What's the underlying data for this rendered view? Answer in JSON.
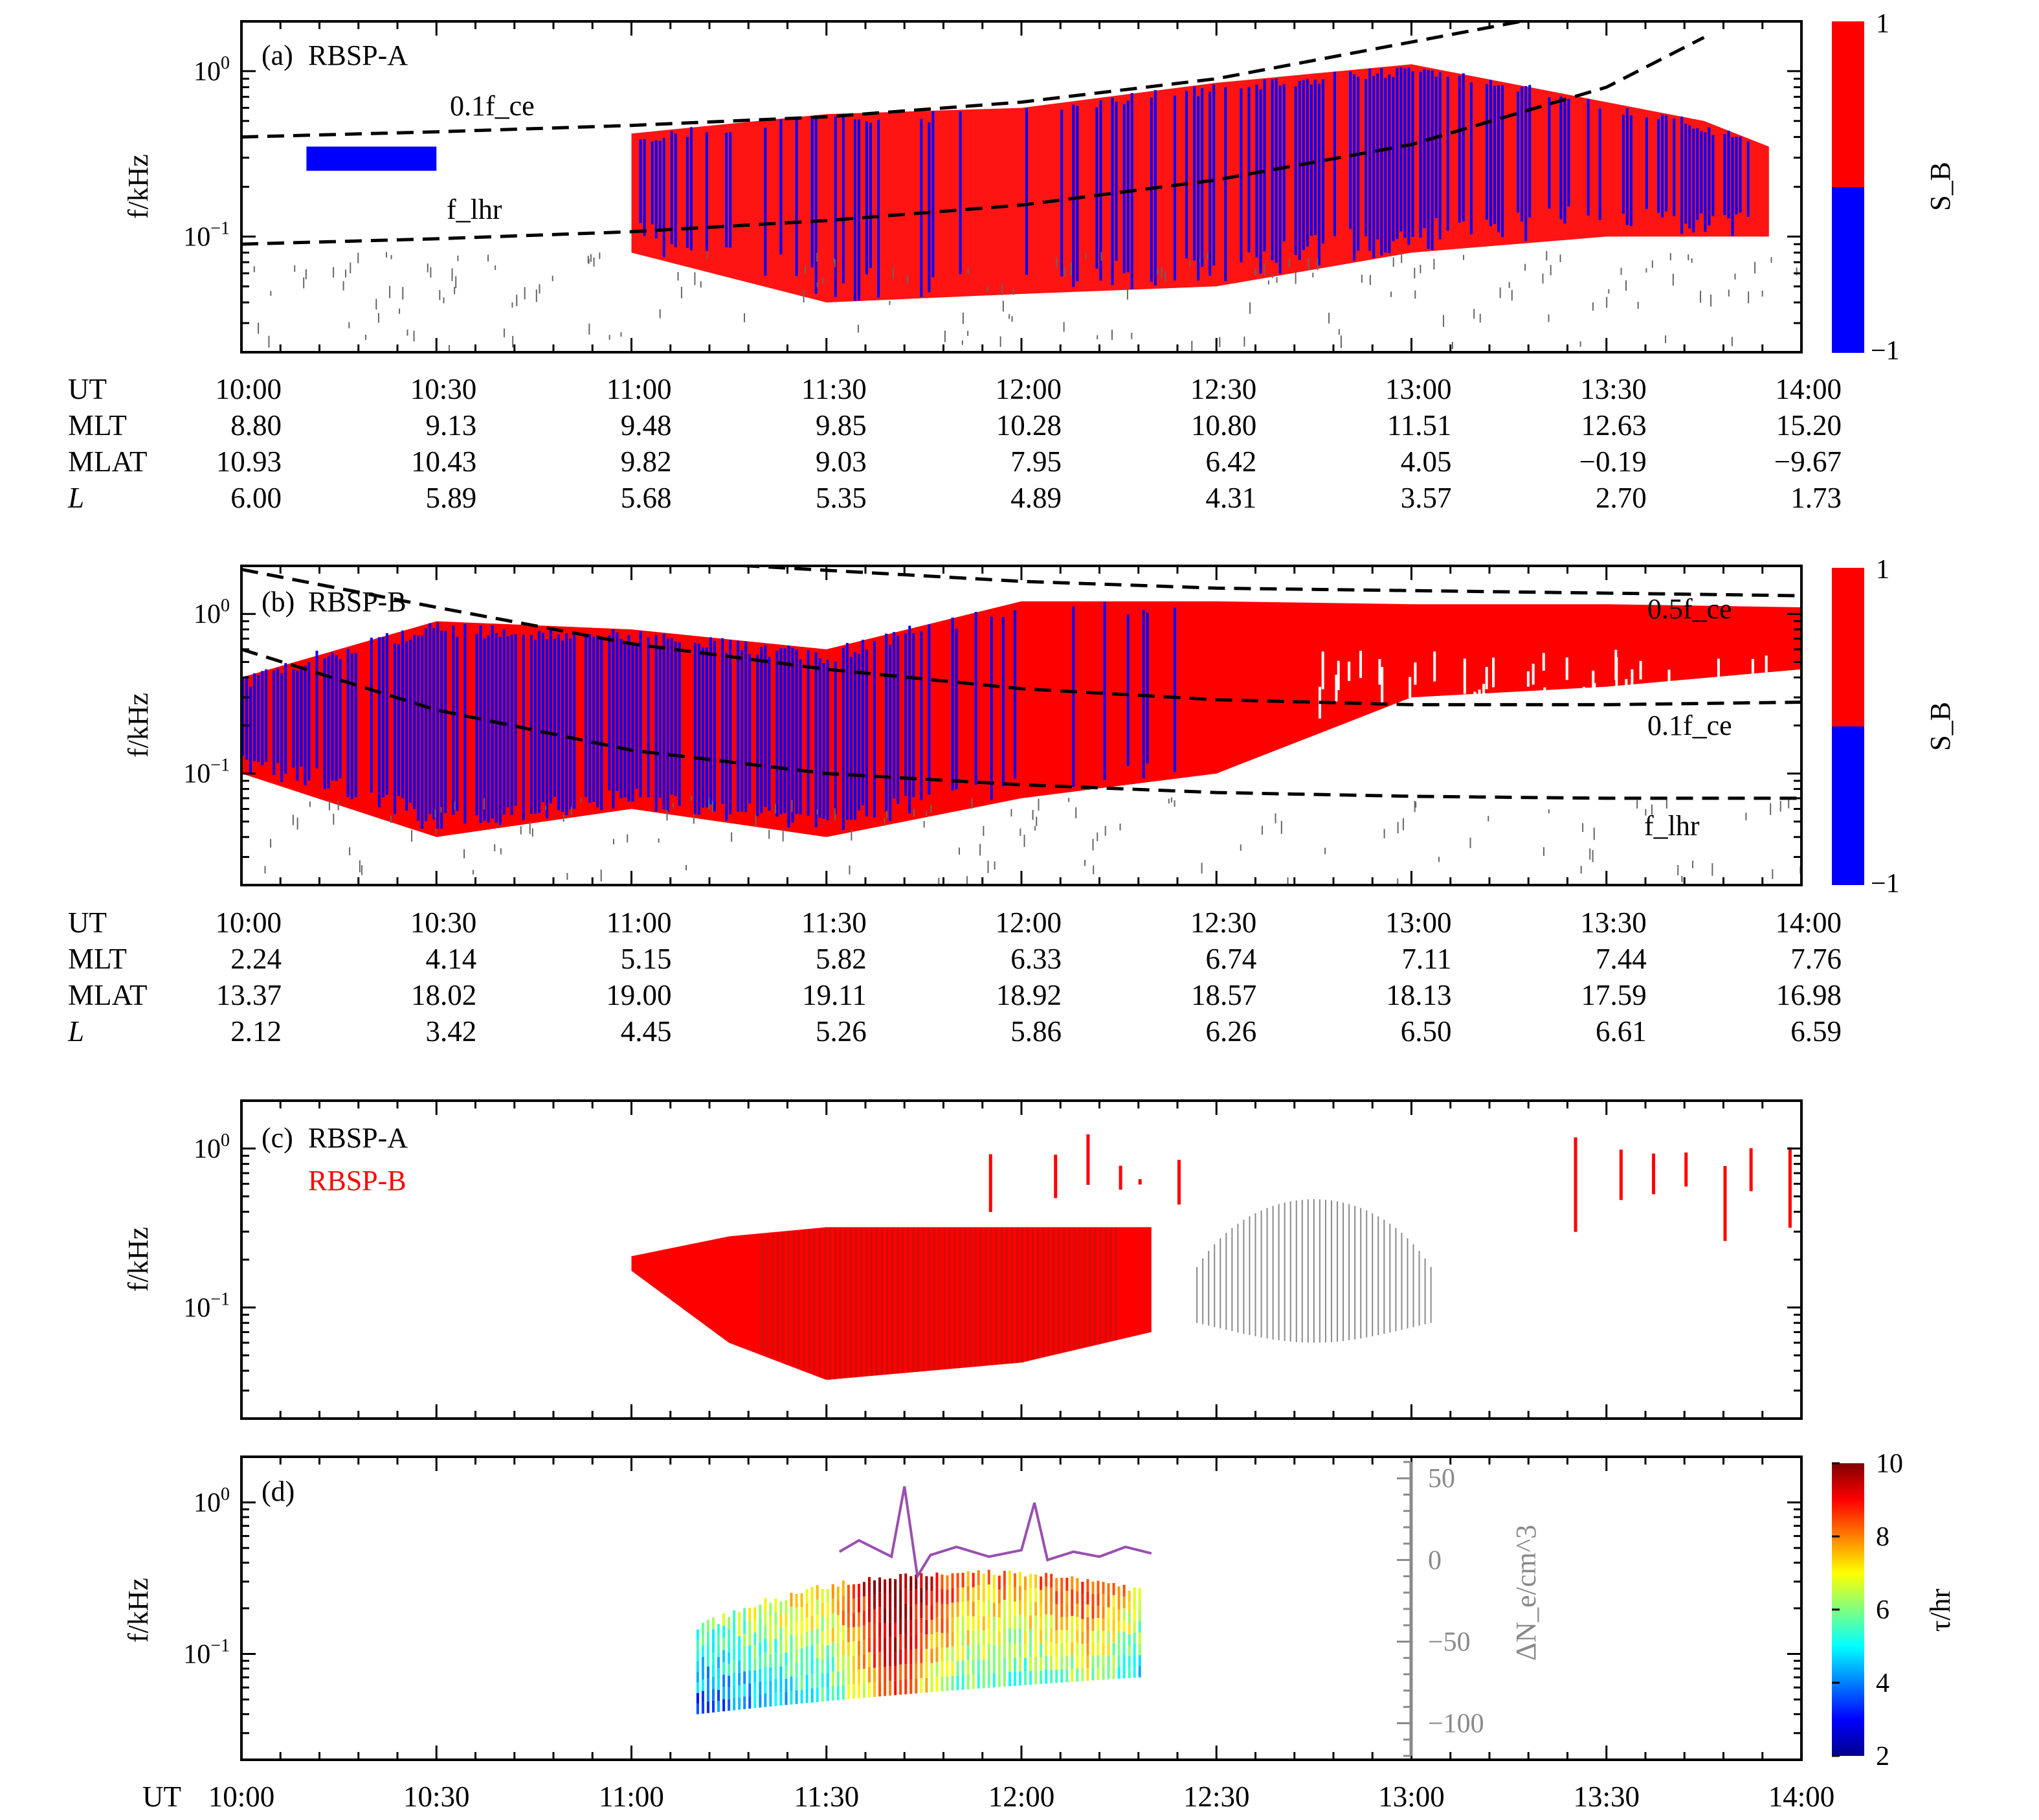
{
  "figure": {
    "colors": {
      "red": "#ff0000",
      "blue": "#0000ff",
      "darkred": "#b5160f",
      "grey": "#8a8a8a",
      "purple": "#9a4fb0"
    }
  },
  "chart_data": [
    {
      "panel": "a",
      "type": "heatmap",
      "label_prefix": "(a)",
      "label": "RBSP-A",
      "xlabel": "",
      "ylabel": "f/kHz",
      "xlim": [
        "10:00",
        "14:00"
      ],
      "ylim": [
        0.02,
        2.0
      ],
      "yscale": "log",
      "yticks": [
        "10^-1",
        "10^0"
      ],
      "colorbar": {
        "label": "S_B",
        "ticks": [
          "1",
          "−1"
        ],
        "values": [
          1,
          -1
        ],
        "colors": [
          "#ff0000",
          "#0000ff"
        ]
      },
      "curve_labels": [
        "0.1f_ce",
        "f_lhr"
      ],
      "curves": [
        {
          "name": "0.1f_ce",
          "x": [
            "10:00",
            "10:30",
            "11:00",
            "11:30",
            "12:00",
            "12:30",
            "13:00",
            "13:30",
            "13:50"
          ],
          "y": [
            0.4,
            0.43,
            0.47,
            0.53,
            0.65,
            0.9,
            1.5,
            2.5,
            3.8
          ]
        },
        {
          "name": "f_lhr",
          "x": [
            "10:00",
            "10:30",
            "11:00",
            "11:30",
            "12:00",
            "12:30",
            "13:00",
            "13:30",
            "13:45"
          ],
          "y": [
            0.09,
            0.097,
            0.107,
            0.125,
            0.155,
            0.22,
            0.36,
            0.8,
            1.6
          ]
        }
      ],
      "emission": [
        {
          "t": "10:10",
          "f_low": 0.25,
          "f_high": 0.35,
          "S": -0.9
        },
        {
          "t": "10:45",
          "f_low": 0.1,
          "f_high": 0.38,
          "S": 0.2
        },
        {
          "t": "11:00",
          "f_low": 0.08,
          "f_high": 0.42,
          "S": 0.1
        },
        {
          "t": "11:30",
          "f_low": 0.04,
          "f_high": 0.55,
          "S": 0.6
        },
        {
          "t": "12:00",
          "f_low": 0.045,
          "f_high": 0.6,
          "S": 0.4
        },
        {
          "t": "12:30",
          "f_low": 0.05,
          "f_high": 0.85,
          "S": 0.1
        },
        {
          "t": "13:00",
          "f_low": 0.08,
          "f_high": 1.1,
          "S": -0.5
        },
        {
          "t": "13:30",
          "f_low": 0.1,
          "f_high": 0.65,
          "S": 0.2
        },
        {
          "t": "13:45",
          "f_low": 0.1,
          "f_high": 0.5,
          "S": -0.8
        },
        {
          "t": "13:55",
          "f_low": 0.1,
          "f_high": 0.35,
          "S": 0.8
        }
      ],
      "table": {
        "rows": [
          "UT",
          "MLT",
          "MLAT",
          "L"
        ],
        "UT": [
          "10:00",
          "10:30",
          "11:00",
          "11:30",
          "12:00",
          "12:30",
          "13:00",
          "13:30",
          "14:00"
        ],
        "MLT": [
          "8.80",
          "9.13",
          "9.48",
          "9.85",
          "10.28",
          "10.80",
          "11.51",
          "12.63",
          "15.20"
        ],
        "MLAT": [
          "10.93",
          "10.43",
          "9.82",
          "9.03",
          "7.95",
          "6.42",
          "4.05",
          "−0.19",
          "−9.67"
        ],
        "L": [
          "6.00",
          "5.89",
          "5.68",
          "5.35",
          "4.89",
          "4.31",
          "3.57",
          "2.70",
          "1.73"
        ]
      }
    },
    {
      "panel": "b",
      "type": "heatmap",
      "label_prefix": "(b)",
      "label": "RBSP-B",
      "xlabel": "",
      "ylabel": "f/kHz",
      "xlim": [
        "10:00",
        "14:00"
      ],
      "ylim": [
        0.02,
        2.0
      ],
      "yscale": "log",
      "yticks": [
        "10^-1",
        "10^0"
      ],
      "colorbar": {
        "label": "S_B",
        "ticks": [
          "1",
          "−1"
        ],
        "values": [
          1,
          -1
        ],
        "colors": [
          "#ff0000",
          "#0000ff"
        ]
      },
      "curve_labels": [
        "0.5f_ce",
        "0.1f_ce",
        "f_lhr"
      ],
      "curves": [
        {
          "name": "0.5f_ce",
          "x": [
            "10:30",
            "11:00",
            "12:00",
            "12:30",
            "13:00",
            "13:30",
            "14:00"
          ],
          "y": [
            4.0,
            2.2,
            1.6,
            1.45,
            1.4,
            1.35,
            1.3
          ]
        },
        {
          "name": "0.1f_ce",
          "x": [
            "10:00",
            "10:30",
            "11:00",
            "11:30",
            "12:00",
            "12:30",
            "13:00",
            "13:30",
            "14:00"
          ],
          "y": [
            1.9,
            1.1,
            0.65,
            0.45,
            0.34,
            0.29,
            0.27,
            0.27,
            0.28
          ]
        },
        {
          "name": "f_lhr",
          "x": [
            "10:00",
            "10:30",
            "11:00",
            "11:30",
            "12:00",
            "12:30",
            "13:00",
            "13:30",
            "14:00"
          ],
          "y": [
            0.6,
            0.25,
            0.14,
            0.1,
            0.085,
            0.076,
            0.072,
            0.07,
            0.07
          ]
        }
      ],
      "emission": [
        {
          "t": "10:00",
          "f_low": 0.1,
          "f_high": 0.4,
          "S": -0.7
        },
        {
          "t": "10:30",
          "f_low": 0.04,
          "f_high": 0.9,
          "S": -0.8
        },
        {
          "t": "11:00",
          "f_low": 0.06,
          "f_high": 0.8,
          "S": -0.6
        },
        {
          "t": "11:30",
          "f_low": 0.04,
          "f_high": 0.6,
          "S": -0.7
        },
        {
          "t": "12:00",
          "f_low": 0.07,
          "f_high": 1.2,
          "S": 0.9
        },
        {
          "t": "12:30",
          "f_low": 0.1,
          "f_high": 1.2,
          "S": 0.9
        },
        {
          "t": "13:00",
          "f_low": 0.3,
          "f_high": 1.15,
          "S": 1.0
        },
        {
          "t": "13:30",
          "f_low": 0.35,
          "f_high": 1.15,
          "S": 1.0
        },
        {
          "t": "14:00",
          "f_low": 0.45,
          "f_high": 1.1,
          "S": 1.0
        }
      ],
      "table": {
        "rows": [
          "UT",
          "MLT",
          "MLAT",
          "L"
        ],
        "UT": [
          "10:00",
          "10:30",
          "11:00",
          "11:30",
          "12:00",
          "12:30",
          "13:00",
          "13:30",
          "14:00"
        ],
        "MLT": [
          "2.24",
          "4.14",
          "5.15",
          "5.82",
          "6.33",
          "6.74",
          "7.11",
          "7.44",
          "7.76"
        ],
        "MLAT": [
          "13.37",
          "18.02",
          "19.00",
          "19.11",
          "18.92",
          "18.57",
          "18.13",
          "17.59",
          "16.98"
        ],
        "L": [
          "2.12",
          "3.42",
          "4.45",
          "5.26",
          "5.86",
          "6.26",
          "6.50",
          "6.61",
          "6.59"
        ]
      }
    },
    {
      "panel": "c",
      "type": "heatmap",
      "label_prefix": "(c)",
      "label": "RBSP-A",
      "label2": "RBSP-B",
      "xlabel": "",
      "ylabel": "f/kHz",
      "xlim": [
        "10:00",
        "14:00"
      ],
      "ylim": [
        0.02,
        2.0
      ],
      "yscale": "log",
      "yticks": [
        "10^-1",
        "10^0"
      ],
      "emission": [
        {
          "t": "11:00",
          "f_low": 0.17,
          "f_high": 0.21,
          "series": "RBSP-B"
        },
        {
          "t": "11:15",
          "f_low": 0.06,
          "f_high": 0.28,
          "series": "RBSP-B"
        },
        {
          "t": "11:30",
          "f_low": 0.035,
          "f_high": 0.32,
          "series": "both"
        },
        {
          "t": "12:00",
          "f_low": 0.045,
          "f_high": 0.32,
          "series": "both"
        },
        {
          "t": "12:20",
          "f_low": 0.07,
          "f_high": 0.32,
          "series": "RBSP-B"
        },
        {
          "t": "12:40",
          "f_low": 0.08,
          "f_high": 0.32,
          "series": "RBSP-A"
        },
        {
          "t": "13:00",
          "f_low": 0.08,
          "f_high": 0.5,
          "series": "RBSP-A"
        },
        {
          "t": "13:25",
          "f_low": 0.2,
          "f_high": 0.8,
          "series": "RBSP-B"
        },
        {
          "t": "13:45",
          "f_low": 0.5,
          "f_high": 1.2,
          "series": "RBSP-B"
        }
      ]
    },
    {
      "panel": "d",
      "type": "heatmap",
      "label_prefix": "(d)",
      "label": "",
      "xlabel": "UT",
      "ylabel": "f/kHz",
      "xlim": [
        "10:00",
        "14:00"
      ],
      "xticks": [
        "10:00",
        "10:30",
        "11:00",
        "11:30",
        "12:00",
        "12:30",
        "13:00",
        "13:30",
        "14:00"
      ],
      "ylim": [
        0.02,
        2.0
      ],
      "yscale": "log",
      "yticks": [
        "10^-1",
        "10^0"
      ],
      "colorbar": {
        "label": "τ/hr",
        "ticks": [
          "10",
          "8",
          "6",
          "4",
          "2"
        ],
        "range": [
          2,
          10
        ],
        "colormap": "jet"
      },
      "right_axis": {
        "label": "ΔN_e/cm^3",
        "ticks": [
          "50",
          "0",
          "−50",
          "−100"
        ],
        "range": [
          -120,
          60
        ],
        "color": "#8a8a8a"
      },
      "tau_map": [
        {
          "t": "11:10",
          "tau": 3.5
        },
        {
          "t": "11:20",
          "tau": 4.5
        },
        {
          "t": "11:30",
          "tau": 5.2
        },
        {
          "t": "11:40",
          "tau": 8.5
        },
        {
          "t": "11:50",
          "tau": 6.0
        },
        {
          "t": "12:00",
          "tau": 5.5
        },
        {
          "t": "12:10",
          "tau": 6.5
        },
        {
          "t": "12:18",
          "tau": 5.0
        }
      ],
      "delta_Ne": {
        "x": [
          "11:32",
          "11:35",
          "11:40",
          "11:42",
          "11:44",
          "11:46",
          "11:50",
          "11:55",
          "12:00",
          "12:02",
          "12:04",
          "12:08",
          "12:12",
          "12:16",
          "12:20"
        ],
        "y": [
          5,
          12,
          2,
          45,
          -10,
          3,
          8,
          2,
          6,
          35,
          0,
          5,
          2,
          8,
          4
        ]
      }
    }
  ]
}
